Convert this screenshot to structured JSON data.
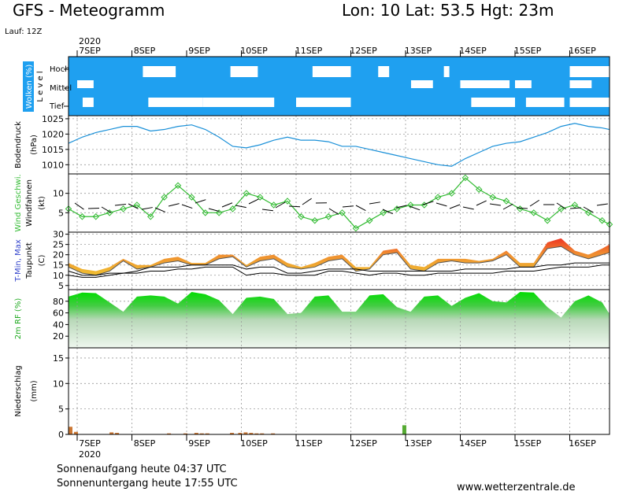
{
  "header": {
    "title": "GFS - Meteogramm",
    "location": "Lon: 10  Lat: 53.5  Hgt: 23m",
    "run": "Lauf: 12Z",
    "year_top": "2020",
    "year_bottom": "2020"
  },
  "footer": {
    "sunrise": "Sonnenaufgang heute 04:37 UTC",
    "sunset": "Sonnenuntergang heute 17:55 UTC",
    "source": "www.wetterzentrale.de"
  },
  "colors": {
    "cloud_bg": "#1fa0f0",
    "pressure": "#1a90d8",
    "wind": "#33bb33",
    "temp_fill": "#f0a030",
    "temp_max": "#ee3322",
    "rh_fill": "#22cc22",
    "precip": "#cc7733"
  },
  "chart_data": [
    {
      "type": "heatmap",
      "ylabel": "Wolken (%)",
      "ylabel2": "L e v e l",
      "levels": [
        "Hoch",
        "Mittel",
        "Tief"
      ],
      "x_dates": [
        "7SEP",
        "8SEP",
        "9SEP",
        "10SEP",
        "11SEP",
        "12SEP",
        "13SEP",
        "14SEP",
        "15SEP",
        "16SEP"
      ]
    },
    {
      "type": "line",
      "ylabel": "Bodendruck",
      "ylabel2": "(hPa)",
      "ylim": [
        1007,
        1026
      ],
      "yticks": [
        1010,
        1015,
        1020,
        1025
      ],
      "x_dates": [
        "7SEP",
        "8SEP",
        "9SEP",
        "10SEP",
        "11SEP",
        "12SEP",
        "13SEP",
        "14SEP",
        "15SEP",
        "16SEP"
      ],
      "x_days": [
        0,
        0.25,
        0.5,
        0.75,
        1,
        1.25,
        1.5,
        1.75,
        2,
        2.25,
        2.5,
        2.75,
        3,
        3.25,
        3.5,
        3.75,
        4,
        4.25,
        4.5,
        4.75,
        5,
        5.25,
        5.5,
        5.75,
        6,
        6.25,
        6.5,
        6.75,
        7,
        7.25,
        7.5,
        7.75,
        8,
        8.25,
        8.5,
        8.75,
        9,
        9.25,
        9.5,
        9.75,
        10
      ],
      "values": [
        1017,
        1019,
        1020.5,
        1021.5,
        1022.5,
        1022.5,
        1021,
        1021.5,
        1022.5,
        1023,
        1021.5,
        1019,
        1016,
        1015.5,
        1016.5,
        1018,
        1019,
        1018,
        1018,
        1017.5,
        1016,
        1016,
        1015,
        1014,
        1013,
        1012,
        1011,
        1010,
        1009.5,
        1012,
        1014,
        1016,
        1017,
        1017.5,
        1019,
        1020.5,
        1022.5,
        1023.5,
        1022.5,
        1022,
        1021.5
      ]
    },
    {
      "type": "line",
      "ylabel": "Wind Geschwi.",
      "ylabel2": "Windfahnen",
      "ylabel3": "(kt)",
      "ylim": [
        0,
        15
      ],
      "yticks": [
        5,
        10
      ],
      "x_dates": [
        "7SEP",
        "8SEP",
        "9SEP",
        "10SEP",
        "11SEP",
        "12SEP",
        "13SEP",
        "14SEP",
        "15SEP",
        "16SEP"
      ],
      "x_days": [
        0,
        0.25,
        0.5,
        0.75,
        1,
        1.25,
        1.5,
        1.75,
        2,
        2.25,
        2.5,
        2.75,
        3,
        3.25,
        3.5,
        3.75,
        4,
        4.25,
        4.5,
        4.75,
        5,
        5.25,
        5.5,
        5.75,
        6,
        6.25,
        6.5,
        6.75,
        7,
        7.25,
        7.5,
        7.75,
        8,
        8.25,
        8.5,
        8.75,
        9,
        9.25,
        9.5,
        9.75,
        10
      ],
      "values": [
        6,
        4,
        4,
        5,
        6,
        7,
        4,
        9,
        12,
        9,
        5,
        5,
        6,
        10,
        9,
        7,
        8,
        4,
        3,
        4,
        5,
        1,
        3,
        5,
        6,
        7,
        7,
        9,
        10,
        14,
        11,
        9,
        8,
        6,
        5,
        3,
        6,
        7,
        5,
        3,
        2
      ]
    },
    {
      "type": "area",
      "ylabel": "T-Min, Max",
      "ylabel2": "Taupunkt",
      "ylabel3": "(C)",
      "ylim": [
        3,
        31
      ],
      "yticks": [
        5,
        10,
        15,
        20,
        25,
        30
      ],
      "x_dates": [
        "7SEP",
        "8SEP",
        "9SEP",
        "10SEP",
        "11SEP",
        "12SEP",
        "13SEP",
        "14SEP",
        "15SEP",
        "16SEP"
      ],
      "x_days": [
        0,
        0.25,
        0.5,
        0.75,
        1,
        1.25,
        1.5,
        1.75,
        2,
        2.25,
        2.5,
        2.75,
        3,
        3.25,
        3.5,
        3.75,
        4,
        4.25,
        4.5,
        4.75,
        5,
        5.25,
        5.5,
        5.75,
        6,
        6.25,
        6.5,
        6.75,
        7,
        7.25,
        7.5,
        7.75,
        8,
        8.25,
        8.5,
        8.75,
        9,
        9.25,
        9.5,
        9.75,
        10
      ],
      "series": [
        {
          "name": "Max",
          "values": [
            16,
            13,
            12,
            14,
            18,
            15,
            15,
            18,
            19,
            16,
            16,
            20,
            20,
            15,
            19,
            20,
            16,
            14,
            16,
            19,
            20,
            14,
            14,
            22,
            23,
            15,
            14,
            18,
            18,
            18,
            17,
            18,
            22,
            16,
            16,
            26,
            28,
            22,
            20,
            23,
            25
          ]
        },
        {
          "name": "Min",
          "values": [
            14,
            11,
            10,
            12,
            17,
            13,
            14,
            16,
            17,
            15,
            15,
            18,
            19,
            14,
            17,
            18,
            14,
            13,
            14,
            17,
            18,
            12,
            13,
            20,
            21,
            13,
            12,
            16,
            17,
            16,
            16,
            17,
            20,
            14,
            14,
            23,
            24,
            20,
            18,
            20,
            21
          ]
        },
        {
          "name": "Taupunkt",
          "values": [
            12,
            10,
            10,
            11,
            11,
            12,
            14,
            14,
            14,
            15,
            15,
            15,
            15,
            13,
            14,
            14,
            11,
            11,
            12,
            13,
            13,
            13,
            12,
            12,
            12,
            12,
            12,
            12,
            12,
            13,
            13,
            13,
            13,
            14,
            14,
            15,
            15,
            16,
            16,
            16,
            16
          ]
        },
        {
          "name": "T-Min",
          "values": [
            10,
            9,
            9,
            10,
            11,
            11,
            12,
            12,
            13,
            13,
            14,
            14,
            14,
            10,
            11,
            11,
            10,
            10,
            10,
            12,
            12,
            11,
            10,
            11,
            11,
            10,
            10,
            11,
            11,
            11,
            11,
            11,
            12,
            12,
            12,
            13,
            14,
            14,
            14,
            15,
            15
          ]
        }
      ]
    },
    {
      "type": "area",
      "ylabel": "2m RF (%)",
      "ylim": [
        0,
        100
      ],
      "yticks": [
        20,
        40,
        60,
        80
      ],
      "x_dates": [
        "7SEP",
        "8SEP",
        "9SEP",
        "10SEP",
        "11SEP",
        "12SEP",
        "13SEP",
        "14SEP",
        "15SEP",
        "16SEP"
      ],
      "x_days": [
        0,
        0.25,
        0.5,
        0.75,
        1,
        1.25,
        1.5,
        1.75,
        2,
        2.25,
        2.5,
        2.75,
        3,
        3.25,
        3.5,
        3.75,
        4,
        4.25,
        4.5,
        4.75,
        5,
        5.25,
        5.5,
        5.75,
        6,
        6.25,
        6.5,
        6.75,
        7,
        7.25,
        7.5,
        7.75,
        8,
        8.25,
        8.5,
        8.75,
        9,
        9.25,
        9.5,
        9.75,
        10
      ],
      "values": [
        88,
        95,
        94,
        78,
        62,
        88,
        90,
        88,
        76,
        96,
        92,
        82,
        58,
        86,
        88,
        84,
        58,
        60,
        88,
        90,
        62,
        62,
        90,
        92,
        70,
        62,
        88,
        90,
        72,
        86,
        94,
        80,
        78,
        96,
        95,
        70,
        52,
        80,
        90,
        78,
        58
      ]
    },
    {
      "type": "bar",
      "ylabel": "Niederschlag",
      "ylabel2": "(mm)",
      "ylim": [
        0,
        17
      ],
      "yticks": [
        0,
        5,
        10,
        15
      ],
      "x_dates": [
        "7SEP",
        "8SEP",
        "9SEP",
        "10SEP",
        "11SEP",
        "12SEP",
        "13SEP",
        "14SEP",
        "15SEP",
        "16SEP"
      ],
      "x_days": [
        0,
        0.1,
        0.75,
        0.85,
        1.8,
        2.1,
        2.3,
        2.4,
        2.5,
        2.95,
        3.1,
        3.2,
        3.3,
        3.4,
        3.5,
        3.7,
        6.1
      ],
      "values": [
        1.5,
        0.5,
        0.4,
        0.3,
        0.2,
        0.2,
        0.3,
        0.2,
        0.2,
        0.3,
        0.3,
        0.4,
        0.3,
        0.2,
        0.2,
        0.2,
        1.8
      ]
    }
  ]
}
